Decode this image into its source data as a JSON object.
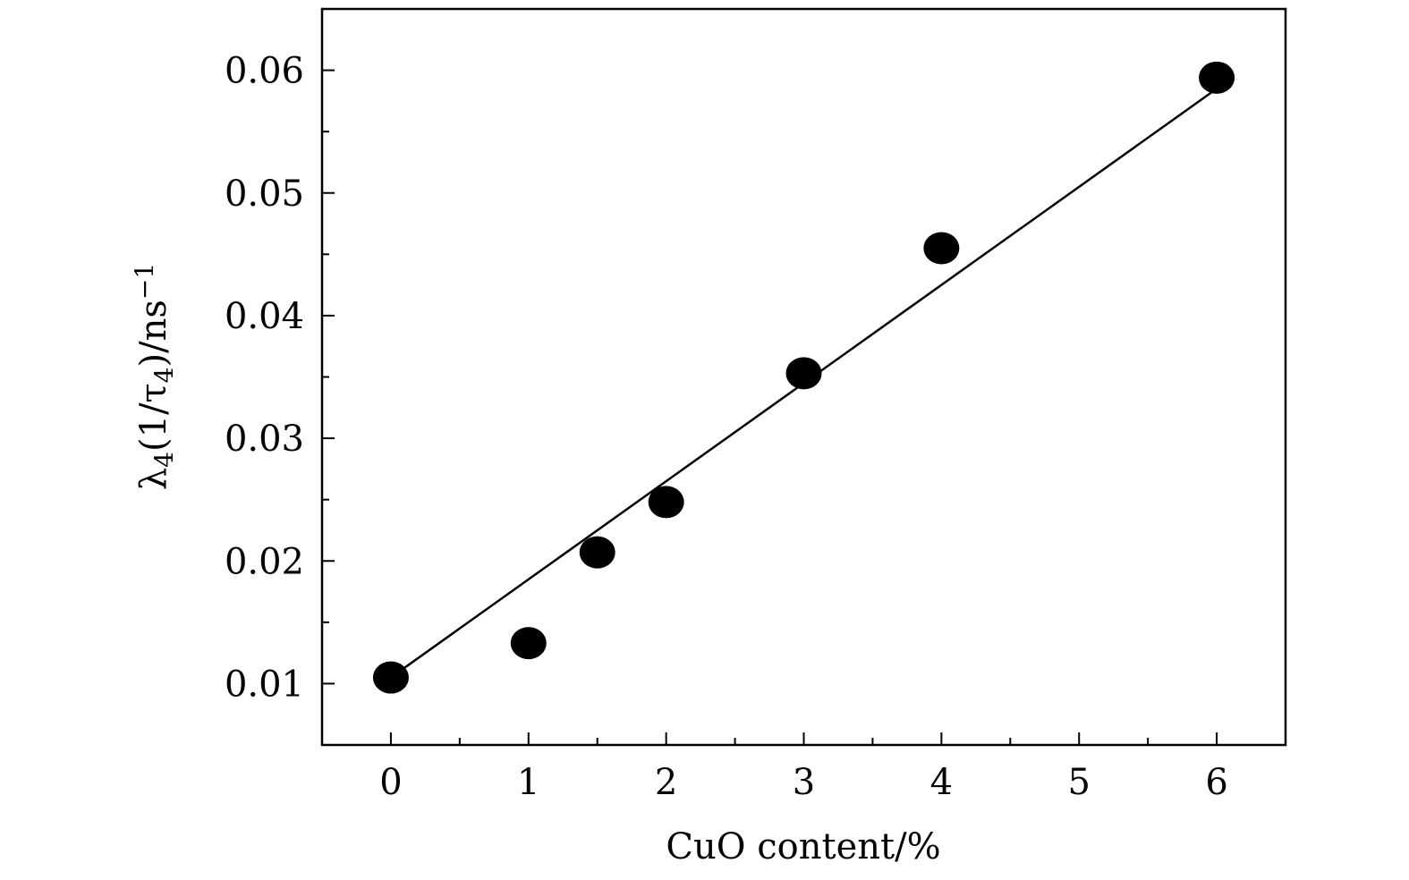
{
  "chart_data": {
    "type": "scatter",
    "xlabel": "CuO content/%",
    "ylabel": {
      "prefix": "λ",
      "prefix_sub": "4",
      "middle": "(1/τ",
      "middle_sub": "4",
      "suffix": ")/ns",
      "suffix_sup": "−1"
    },
    "xlim": [
      -0.5,
      6.5
    ],
    "ylim": [
      0.005,
      0.065
    ],
    "x_ticks": [
      0,
      1,
      2,
      3,
      4,
      5,
      6
    ],
    "x_tick_labels": [
      "0",
      "1",
      "2",
      "3",
      "4",
      "5",
      "6"
    ],
    "x_minor_ticks": [
      0.5,
      1.5,
      2.5,
      3.5,
      4.5,
      5.5
    ],
    "y_ticks": [
      0.01,
      0.02,
      0.03,
      0.04,
      0.05,
      0.06
    ],
    "y_tick_labels": [
      "0.01",
      "0.02",
      "0.03",
      "0.04",
      "0.05",
      "0.06"
    ],
    "y_minor_ticks": [
      0.015,
      0.025,
      0.035,
      0.045,
      0.055
    ],
    "grid": false,
    "series": [
      {
        "x": [
          0,
          1,
          1.5,
          2,
          3,
          4,
          6
        ],
        "y": [
          0.0105,
          0.0133,
          0.0207,
          0.0248,
          0.0353,
          0.0455,
          0.0594
        ]
      }
    ],
    "fit_line": {
      "x": [
        0,
        6
      ],
      "y": [
        0.0105,
        0.0585
      ]
    }
  }
}
